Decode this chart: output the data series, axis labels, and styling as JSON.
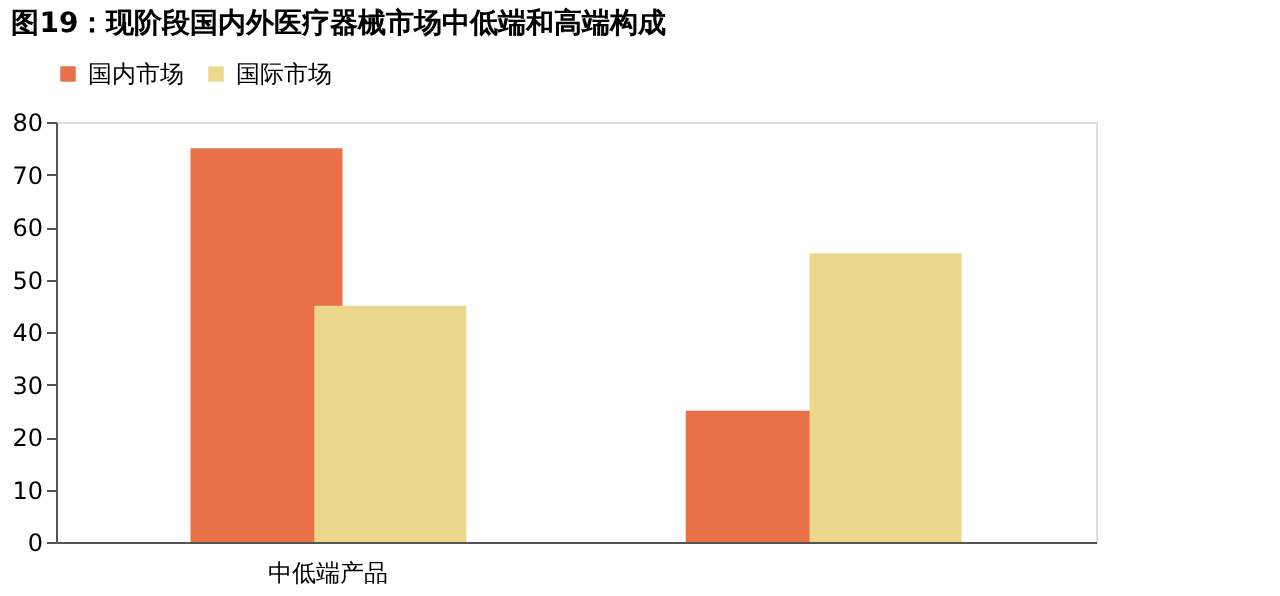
{
  "chart_data": {
    "type": "bar",
    "title": "图19：现阶段国内外医疗器械市场中低端和高端构成",
    "categories": [
      "中低端产品",
      null
    ],
    "series": [
      {
        "name": "国内市场",
        "color": "#ea704a",
        "values": [
          75,
          25
        ]
      },
      {
        "name": "国际市场",
        "color": "#ecd88c",
        "values": [
          45,
          55
        ]
      }
    ],
    "ylim": [
      0,
      80
    ],
    "yticks": [
      0,
      10,
      20,
      30,
      40,
      50,
      60,
      70,
      80
    ],
    "grid": false,
    "legend": "top"
  }
}
